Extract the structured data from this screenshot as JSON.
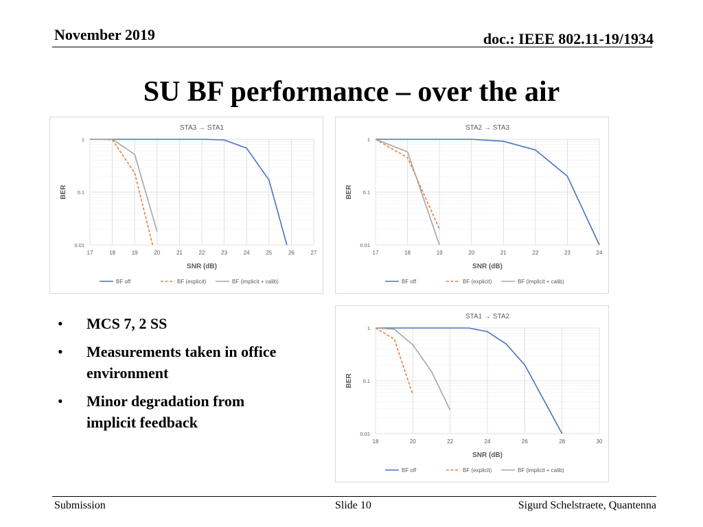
{
  "header": {
    "date": "November 2019",
    "doc": "doc.: IEEE 802.11-19/1934"
  },
  "title": "SU BF performance – over the air",
  "bullets": [
    "MCS 7, 2 SS",
    "Measurements taken in office environment",
    "Minor degradation from implicit feedback"
  ],
  "footer": {
    "left": "Submission",
    "center": "Slide 10",
    "right": "Sigurd Schelstraete, Quantenna"
  },
  "colors": {
    "bf_off": "#4472C4",
    "bf_explicit": "#ED7D31",
    "bf_implicit": "#A5A5A5"
  },
  "chart_data": [
    {
      "type": "line",
      "title": "STA3 → STA1",
      "xlabel": "SNR (dB)",
      "ylabel": "BER",
      "yscale": "log",
      "ylim": [
        0.01,
        1
      ],
      "xlim": [
        17,
        27
      ],
      "xticks": [
        "17",
        "18",
        "19",
        "20",
        "21",
        "22",
        "23",
        "24",
        "25",
        "26",
        "27"
      ],
      "yticks": [
        "1",
        "0.1",
        "0.01"
      ],
      "series": [
        {
          "name": "BF off",
          "style": "solid",
          "x": [
            17,
            18,
            19,
            20,
            21,
            22,
            23,
            24,
            25,
            25.8
          ],
          "y": [
            1,
            1,
            1,
            1,
            1,
            1,
            0.97,
            0.68,
            0.17,
            0.01
          ]
        },
        {
          "name": "BF (explicit)",
          "style": "dashed",
          "x": [
            17,
            18,
            19,
            19.8
          ],
          "y": [
            1,
            0.98,
            0.23,
            0.01
          ]
        },
        {
          "name": "BF (implicit + calib)",
          "style": "solid",
          "x": [
            17,
            18,
            19,
            20
          ],
          "y": [
            1,
            1,
            0.52,
            0.018
          ]
        }
      ]
    },
    {
      "type": "line",
      "title": "STA2 → STA3",
      "xlabel": "SNR (dB)",
      "ylabel": "BER",
      "yscale": "log",
      "ylim": [
        0.01,
        1
      ],
      "xlim": [
        17,
        24
      ],
      "xticks": [
        "17",
        "18",
        "19",
        "20",
        "21",
        "22",
        "23",
        "24"
      ],
      "yticks": [
        "1",
        "0.1",
        "0.01"
      ],
      "series": [
        {
          "name": "BF off",
          "style": "solid",
          "x": [
            17,
            18,
            19,
            20,
            21,
            22,
            23,
            24
          ],
          "y": [
            1,
            1,
            1,
            1,
            0.92,
            0.63,
            0.2,
            0.01
          ]
        },
        {
          "name": "BF (explicit)",
          "style": "dashed",
          "x": [
            17,
            18,
            19
          ],
          "y": [
            1,
            0.45,
            0.02
          ]
        },
        {
          "name": "BF (implicit + calib)",
          "style": "solid",
          "x": [
            17,
            18,
            19
          ],
          "y": [
            1,
            0.58,
            0.01
          ]
        }
      ]
    },
    {
      "type": "line",
      "title": "STA1 → STA2",
      "xlabel": "SNR (dB)",
      "ylabel": "BER",
      "yscale": "log",
      "ylim": [
        0.01,
        1
      ],
      "xlim": [
        18,
        30
      ],
      "xticks": [
        "18",
        "20",
        "22",
        "24",
        "26",
        "28",
        "30"
      ],
      "yticks": [
        "1",
        "0.1",
        "0.01"
      ],
      "series": [
        {
          "name": "BF off",
          "style": "solid",
          "x": [
            18,
            20,
            22,
            23,
            24,
            25,
            26,
            27,
            28
          ],
          "y": [
            1,
            1,
            1,
            1,
            0.85,
            0.5,
            0.2,
            0.045,
            0.01
          ]
        },
        {
          "name": "BF (explicit)",
          "style": "dashed",
          "x": [
            18,
            19,
            20
          ],
          "y": [
            1,
            0.62,
            0.055
          ]
        },
        {
          "name": "BF (implicit + calib)",
          "style": "solid",
          "x": [
            18,
            19,
            20,
            21,
            22
          ],
          "y": [
            1,
            0.95,
            0.48,
            0.15,
            0.028
          ]
        }
      ]
    }
  ]
}
